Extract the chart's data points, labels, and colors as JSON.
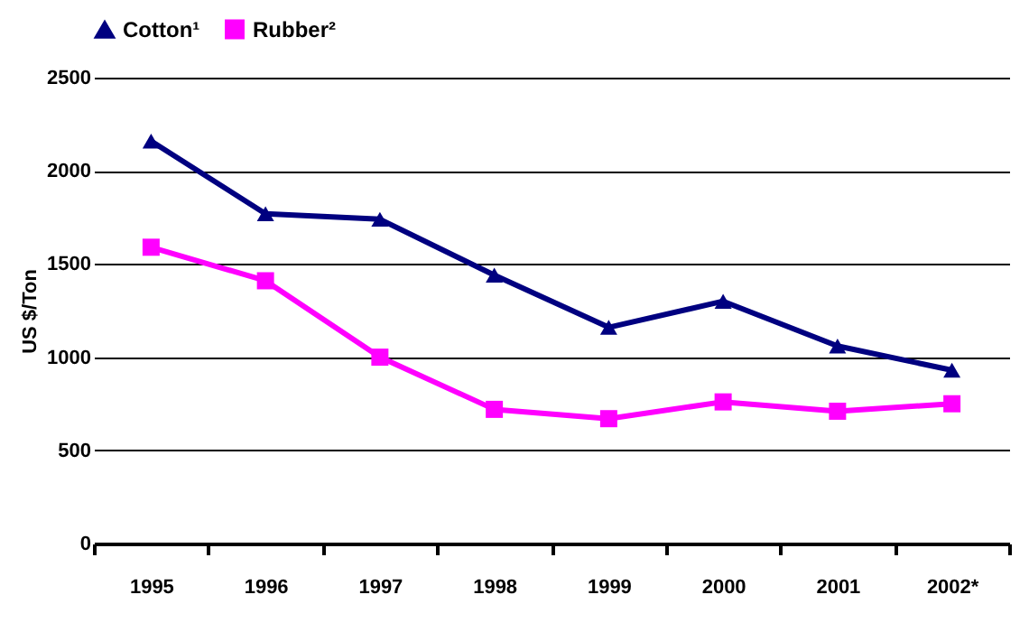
{
  "chart_data": {
    "type": "line",
    "ylabel": "US $/Ton",
    "categories": [
      "1995",
      "1996",
      "1997",
      "1998",
      "1999",
      "2000",
      "2001",
      "2002*"
    ],
    "series": [
      {
        "name": "Cotton¹",
        "color": "#000080",
        "marker": "triangle",
        "values": [
          2160,
          1770,
          1740,
          1440,
          1160,
          1300,
          1060,
          930
        ]
      },
      {
        "name": "Rubber²",
        "color": "#ff00ff",
        "marker": "square",
        "values": [
          1590,
          1410,
          1000,
          720,
          670,
          760,
          710,
          750
        ]
      }
    ],
    "ylim": [
      0,
      2500
    ],
    "yticks": [
      0,
      500,
      1000,
      1500,
      2000,
      2500
    ],
    "grid": "y",
    "legend": "top"
  }
}
